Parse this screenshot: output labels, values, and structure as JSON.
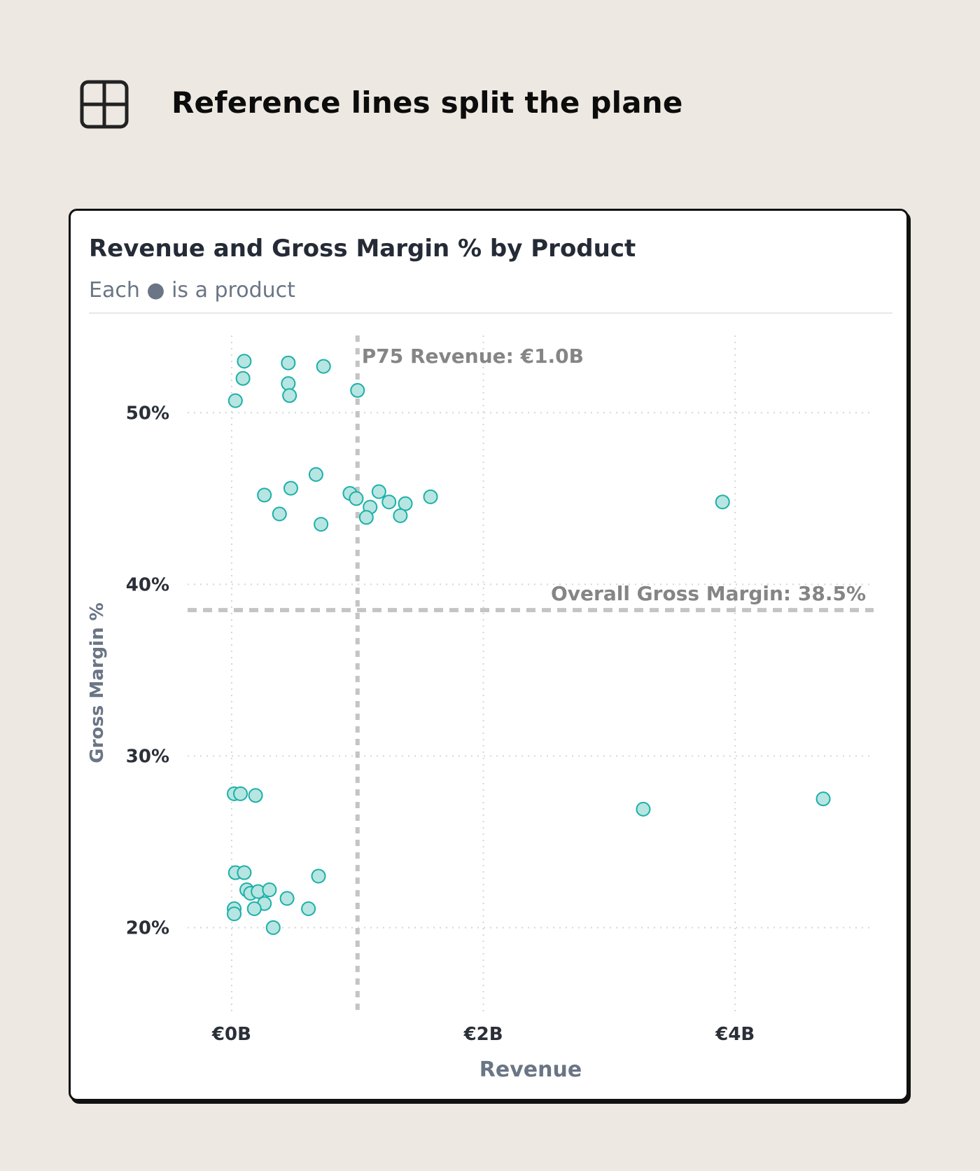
{
  "header": {
    "icon": "grid-quadrant-icon",
    "title": "Reference lines split the plane"
  },
  "card": {
    "title": "Revenue and Gross Margin % by Product",
    "subtitle": "Each ● is a product"
  },
  "chart_data": {
    "type": "scatter",
    "title": "Revenue and Gross Margin % by Product",
    "subtitle": "Each ● is a product",
    "xlabel": "Revenue",
    "ylabel": "Gross Margin %",
    "xlim": [
      -0.35,
      5.1
    ],
    "ylim": [
      15,
      54.5
    ],
    "x_ticks": [
      0,
      2,
      4
    ],
    "x_tick_labels": [
      "€0B",
      "€2B",
      "€4B"
    ],
    "y_ticks": [
      20,
      30,
      40,
      50
    ],
    "y_tick_labels": [
      "20%",
      "30%",
      "40%",
      "50%"
    ],
    "grid": true,
    "marker_color": "#1bb0a8",
    "marker_fill": "#b7e5e1",
    "reference_lines": [
      {
        "axis": "x",
        "value": 1.0,
        "label": "P75 Revenue: €1.0B"
      },
      {
        "axis": "y",
        "value": 38.5,
        "label": "Overall Gross Margin: 38.5%"
      }
    ],
    "points": [
      {
        "x": 0.1,
        "y": 53.0
      },
      {
        "x": 0.45,
        "y": 52.9
      },
      {
        "x": 0.73,
        "y": 52.7
      },
      {
        "x": 0.09,
        "y": 52.0
      },
      {
        "x": 0.45,
        "y": 51.7
      },
      {
        "x": 0.46,
        "y": 51.0
      },
      {
        "x": 1.0,
        "y": 51.3
      },
      {
        "x": 0.03,
        "y": 50.7
      },
      {
        "x": 0.67,
        "y": 46.4
      },
      {
        "x": 0.47,
        "y": 45.6
      },
      {
        "x": 0.26,
        "y": 45.2
      },
      {
        "x": 0.94,
        "y": 45.3
      },
      {
        "x": 0.99,
        "y": 45.0
      },
      {
        "x": 1.17,
        "y": 45.4
      },
      {
        "x": 1.25,
        "y": 44.8
      },
      {
        "x": 1.38,
        "y": 44.7
      },
      {
        "x": 1.58,
        "y": 45.1
      },
      {
        "x": 1.1,
        "y": 44.5
      },
      {
        "x": 1.07,
        "y": 43.9
      },
      {
        "x": 1.34,
        "y": 44.0
      },
      {
        "x": 0.38,
        "y": 44.1
      },
      {
        "x": 0.71,
        "y": 43.5
      },
      {
        "x": 3.9,
        "y": 44.8
      },
      {
        "x": 0.02,
        "y": 27.8
      },
      {
        "x": 0.07,
        "y": 27.8
      },
      {
        "x": 0.19,
        "y": 27.7
      },
      {
        "x": 3.27,
        "y": 26.9
      },
      {
        "x": 4.7,
        "y": 27.5
      },
      {
        "x": 0.03,
        "y": 23.2
      },
      {
        "x": 0.1,
        "y": 23.2
      },
      {
        "x": 0.69,
        "y": 23.0
      },
      {
        "x": 0.12,
        "y": 22.2
      },
      {
        "x": 0.15,
        "y": 22.0
      },
      {
        "x": 0.21,
        "y": 22.1
      },
      {
        "x": 0.3,
        "y": 22.2
      },
      {
        "x": 0.44,
        "y": 21.7
      },
      {
        "x": 0.26,
        "y": 21.4
      },
      {
        "x": 0.02,
        "y": 21.1
      },
      {
        "x": 0.18,
        "y": 21.1
      },
      {
        "x": 0.61,
        "y": 21.1
      },
      {
        "x": 0.02,
        "y": 20.8
      },
      {
        "x": 0.33,
        "y": 20.0
      }
    ]
  }
}
